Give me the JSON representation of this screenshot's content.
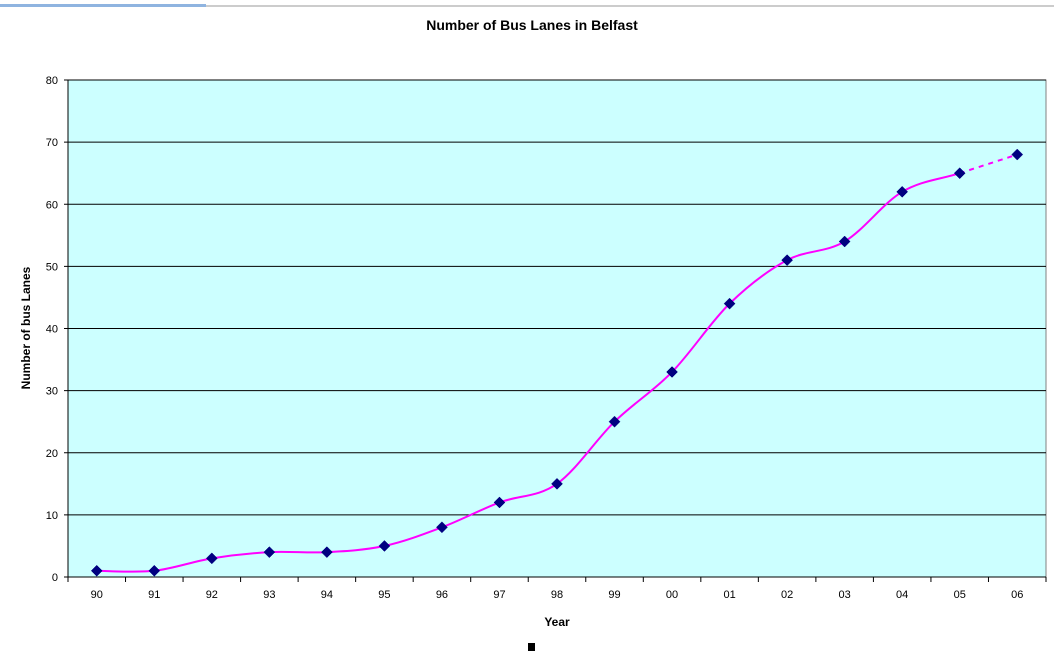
{
  "chart_data": {
    "type": "line",
    "title": "Number of Bus Lanes in Belfast",
    "xlabel": "Year",
    "ylabel": "Number of bus Lanes",
    "categories": [
      "90",
      "91",
      "92",
      "93",
      "94",
      "95",
      "96",
      "97",
      "98",
      "99",
      "00",
      "01",
      "02",
      "03",
      "04",
      "05",
      "06"
    ],
    "values": [
      1,
      1,
      3,
      4,
      4,
      5,
      8,
      12,
      15,
      25,
      33,
      44,
      51,
      54,
      62,
      65,
      68
    ],
    "dashed_last_segment": true,
    "ylim": [
      0,
      80
    ],
    "yticks": [
      0,
      10,
      20,
      30,
      40,
      50,
      60,
      70,
      80
    ],
    "grid": true,
    "legend": "none",
    "colors": {
      "plot_background": "#ccffff",
      "line": "#ff00ff",
      "marker": "#000080",
      "gridline": "#000000",
      "top_accent": "#8fb4e0"
    }
  }
}
